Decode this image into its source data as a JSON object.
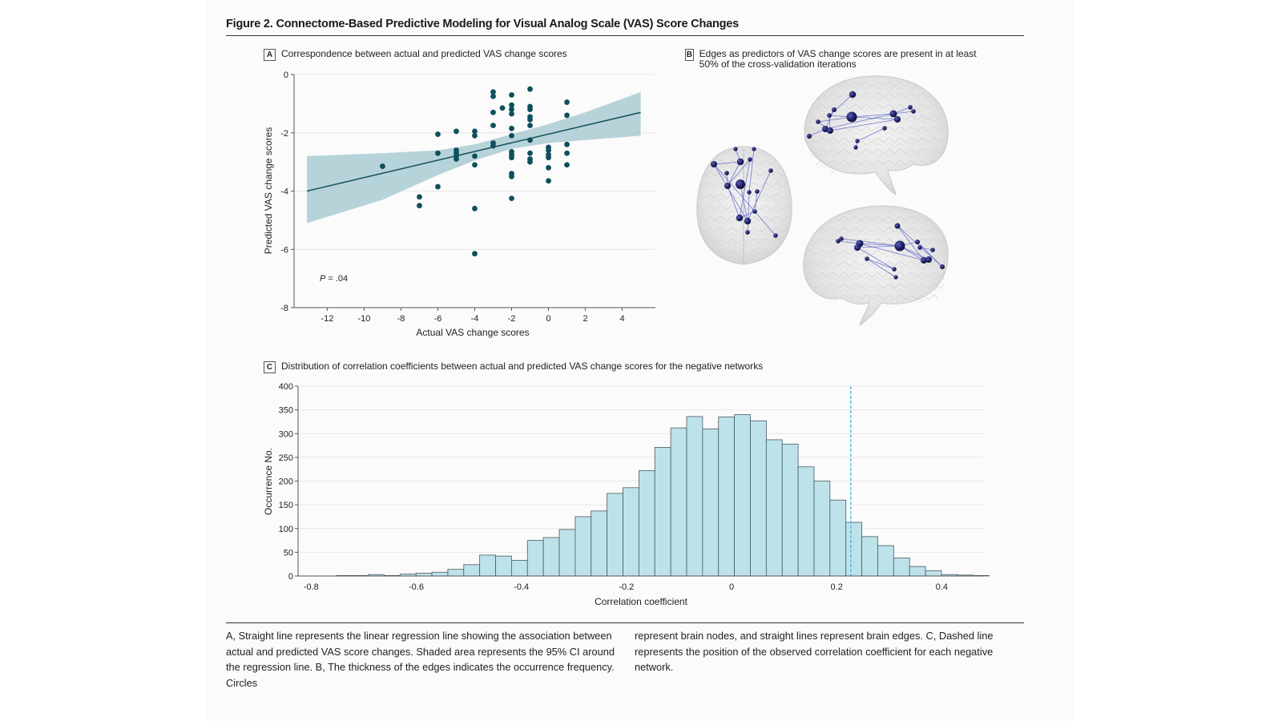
{
  "figure": {
    "title": "Figure 2. Connectome-Based Predictive Modeling for Visual Analog Scale (VAS) Score Changes",
    "caption_left": "A, Straight line represents the linear regression line showing the association between actual and predicted VAS score changes. Shaded area represents the 95% CI around the regression line. B, The thickness of the edges indicates the occurrence frequency. Circles",
    "caption_right": "represent brain nodes, and straight lines represent brain edges. C, Dashed line represents the position of the observed correlation coefficient for each negative network."
  },
  "panels": {
    "a": {
      "letter": "A",
      "title": "Correspondence between actual and predicted VAS change scores"
    },
    "b": {
      "letter": "B",
      "title": "Edges as predictors of VAS change scores are present in at least 50% of the cross-validation iterations",
      "views": [
        "axial brain view",
        "left sagittal brain view",
        "right sagittal brain view"
      ]
    },
    "c": {
      "letter": "C",
      "title": "Distribution of correlation coefficients between actual and predicted VAS change scores for the negative networks"
    }
  },
  "colors": {
    "scatter_point": "#0f4f5c",
    "regression_line": "#1c5561",
    "ci_band": "#a9cbd3",
    "hist_bar": "#bde2ea",
    "hist_edge": "#4a5a60",
    "observed_line": "#2bb3e6",
    "brain_node": "#1c1d5c",
    "brain_edge": "#5a64c8"
  },
  "chart_data": [
    {
      "id": "A",
      "type": "scatter",
      "title": "Correspondence between actual and predicted VAS change scores",
      "xlabel": "Actual VAS change scores",
      "ylabel": "Predicted VAS change scores",
      "xlim": [
        -13.8,
        5.8
      ],
      "ylim": [
        -8,
        0
      ],
      "xticks": [
        -12,
        -10,
        -8,
        -6,
        -4,
        -2,
        0,
        2,
        4
      ],
      "yticks": [
        0,
        -2,
        -4,
        -6,
        -8
      ],
      "xtick_labels": [
        "-12",
        "-10",
        "-8",
        "-6",
        "-4",
        "-2",
        "0",
        "2",
        "4"
      ],
      "ytick_labels": [
        "0",
        "-2",
        "-4",
        "-6",
        "-8"
      ],
      "grid": "horizontal",
      "annotation": {
        "label": "P",
        "text": " = .04",
        "x": -12.6,
        "y": -7.0
      },
      "points": [
        {
          "x": -9,
          "y": -3.15
        },
        {
          "x": -7,
          "y": -4.2
        },
        {
          "x": -7,
          "y": -4.5
        },
        {
          "x": -6,
          "y": -2.05
        },
        {
          "x": -6,
          "y": -2.7
        },
        {
          "x": -6,
          "y": -3.85
        },
        {
          "x": -5,
          "y": -1.95
        },
        {
          "x": -5,
          "y": -2.6
        },
        {
          "x": -5,
          "y": -2.7
        },
        {
          "x": -5,
          "y": -2.8
        },
        {
          "x": -5,
          "y": -2.9
        },
        {
          "x": -4,
          "y": -1.95
        },
        {
          "x": -4,
          "y": -2.1
        },
        {
          "x": -4,
          "y": -2.8
        },
        {
          "x": -4,
          "y": -3.1
        },
        {
          "x": -4,
          "y": -4.6
        },
        {
          "x": -4,
          "y": -6.15
        },
        {
          "x": -3,
          "y": -0.6
        },
        {
          "x": -3,
          "y": -0.75
        },
        {
          "x": -3,
          "y": -1.3
        },
        {
          "x": -3,
          "y": -1.75
        },
        {
          "x": -3,
          "y": -2.35
        },
        {
          "x": -3,
          "y": -2.45
        },
        {
          "x": -2.5,
          "y": -1.15
        },
        {
          "x": -2,
          "y": -0.7
        },
        {
          "x": -2,
          "y": -1.05
        },
        {
          "x": -2,
          "y": -1.2
        },
        {
          "x": -2,
          "y": -1.35
        },
        {
          "x": -2,
          "y": -1.85
        },
        {
          "x": -2,
          "y": -2.1
        },
        {
          "x": -2,
          "y": -2.65
        },
        {
          "x": -2,
          "y": -2.75
        },
        {
          "x": -2,
          "y": -2.85
        },
        {
          "x": -2,
          "y": -3.4
        },
        {
          "x": -2,
          "y": -3.5
        },
        {
          "x": -2,
          "y": -4.25
        },
        {
          "x": -1,
          "y": -0.5
        },
        {
          "x": -1,
          "y": -1.1
        },
        {
          "x": -1,
          "y": -1.2
        },
        {
          "x": -1,
          "y": -1.45
        },
        {
          "x": -1,
          "y": -1.55
        },
        {
          "x": -1,
          "y": -1.75
        },
        {
          "x": -1,
          "y": -2.25
        },
        {
          "x": -1,
          "y": -2.7
        },
        {
          "x": -1,
          "y": -2.9
        },
        {
          "x": -1,
          "y": -3.0
        },
        {
          "x": 0,
          "y": -2.5
        },
        {
          "x": 0,
          "y": -2.6
        },
        {
          "x": 0,
          "y": -2.75
        },
        {
          "x": 0,
          "y": -2.85
        },
        {
          "x": 0,
          "y": -3.2
        },
        {
          "x": 0,
          "y": -3.65
        },
        {
          "x": 1,
          "y": -0.95
        },
        {
          "x": 1,
          "y": -1.4
        },
        {
          "x": 1,
          "y": -2.4
        },
        {
          "x": 1,
          "y": -2.7
        },
        {
          "x": 1,
          "y": -3.1
        }
      ],
      "regression": {
        "x": [
          -13.1,
          5.0
        ],
        "y": [
          -4.0,
          -1.3
        ]
      },
      "ci_band": {
        "x": [
          -13.1,
          -9,
          -6,
          -4,
          -2,
          0,
          2,
          5.0
        ],
        "upper": [
          -2.8,
          -2.7,
          -2.6,
          -2.4,
          -2.05,
          -1.7,
          -1.3,
          -0.6
        ],
        "lower": [
          -5.1,
          -4.3,
          -3.45,
          -2.95,
          -2.55,
          -2.35,
          -2.25,
          -2.1
        ]
      }
    },
    {
      "id": "C",
      "type": "bar",
      "subtype": "histogram",
      "title": "Distribution of correlation coefficients between actual and predicted VAS change scores for the negative networks",
      "xlabel": "Correlation coefficient",
      "ylabel": "Occurrence No.",
      "xlim": [
        -0.825,
        0.48
      ],
      "ylim": [
        0,
        400
      ],
      "xticks": [
        -0.8,
        -0.6,
        -0.4,
        -0.2,
        0,
        0.2,
        0.4
      ],
      "xtick_labels": [
        "-0.8",
        "-0.6",
        "-0.4",
        "-0.2",
        "0",
        "0.2",
        "0.4"
      ],
      "yticks": [
        0,
        50,
        100,
        150,
        200,
        250,
        300,
        350,
        400
      ],
      "ytick_labels": [
        "0",
        "50",
        "100",
        "150",
        "200",
        "250",
        "300",
        "350",
        "400"
      ],
      "grid": "horizontal",
      "bin_start": -0.752,
      "bin_width": 0.0303,
      "counts": [
        1,
        1,
        3,
        1,
        4,
        6,
        8,
        14,
        24,
        44,
        42,
        33,
        75,
        81,
        98,
        125,
        137,
        174,
        186,
        222,
        271,
        312,
        336,
        310,
        335,
        340,
        327,
        287,
        278,
        230,
        200,
        160,
        113,
        83,
        64,
        38,
        20,
        11,
        3,
        2,
        1
      ],
      "observed_value": 0.227,
      "observed_line_style": "dashed"
    }
  ]
}
